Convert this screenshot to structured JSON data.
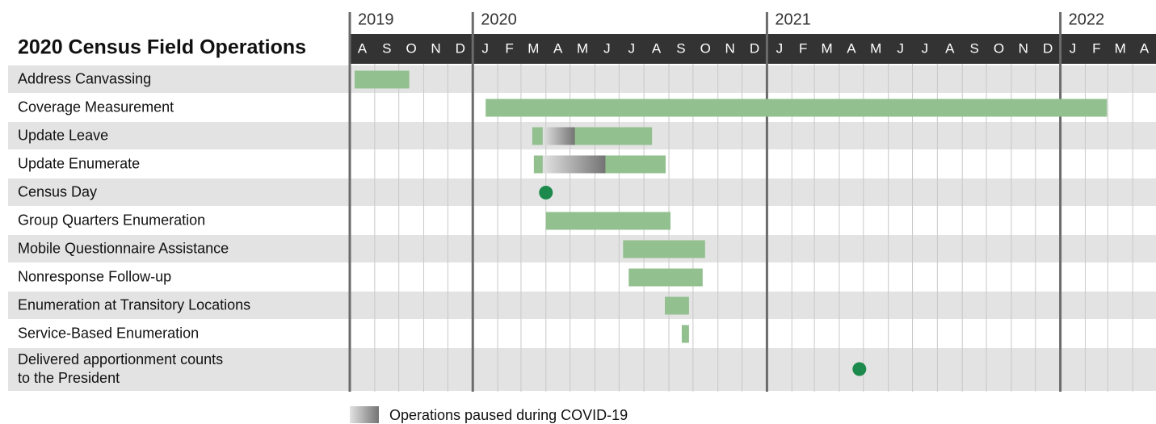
{
  "chart_data": {
    "type": "gantt",
    "title": "2020 Census Field Operations",
    "xlim": [
      "2019-08-01",
      "2022-04-30"
    ],
    "years": [
      {
        "value": "2019-08-01",
        "label": "2019"
      },
      {
        "value": "2020-01-01",
        "label": "2020"
      },
      {
        "value": "2021-01-01",
        "label": "2021"
      },
      {
        "value": "2022-01-01",
        "label": "2022"
      }
    ],
    "xticks": [
      {
        "value": "2019-08-01",
        "label": "A"
      },
      {
        "value": "2019-09-01",
        "label": "S"
      },
      {
        "value": "2019-10-01",
        "label": "O"
      },
      {
        "value": "2019-11-01",
        "label": "N"
      },
      {
        "value": "2019-12-01",
        "label": "D"
      },
      {
        "value": "2020-01-01",
        "label": "J"
      },
      {
        "value": "2020-02-01",
        "label": "F"
      },
      {
        "value": "2020-03-01",
        "label": "M"
      },
      {
        "value": "2020-04-01",
        "label": "A"
      },
      {
        "value": "2020-05-01",
        "label": "M"
      },
      {
        "value": "2020-06-01",
        "label": "J"
      },
      {
        "value": "2020-07-01",
        "label": "J"
      },
      {
        "value": "2020-08-01",
        "label": "A"
      },
      {
        "value": "2020-09-01",
        "label": "S"
      },
      {
        "value": "2020-10-01",
        "label": "O"
      },
      {
        "value": "2020-11-01",
        "label": "N"
      },
      {
        "value": "2020-12-01",
        "label": "D"
      },
      {
        "value": "2021-01-01",
        "label": "J"
      },
      {
        "value": "2021-02-01",
        "label": "F"
      },
      {
        "value": "2021-03-01",
        "label": "M"
      },
      {
        "value": "2021-04-01",
        "label": "A"
      },
      {
        "value": "2021-05-01",
        "label": "M"
      },
      {
        "value": "2021-06-01",
        "label": "J"
      },
      {
        "value": "2021-07-01",
        "label": "J"
      },
      {
        "value": "2021-08-01",
        "label": "A"
      },
      {
        "value": "2021-09-01",
        "label": "S"
      },
      {
        "value": "2021-10-01",
        "label": "O"
      },
      {
        "value": "2021-11-01",
        "label": "N"
      },
      {
        "value": "2021-12-01",
        "label": "D"
      },
      {
        "value": "2022-01-01",
        "label": "J"
      },
      {
        "value": "2022-02-01",
        "label": "F"
      },
      {
        "value": "2022-03-01",
        "label": "M"
      },
      {
        "value": "2022-04-01",
        "label": "A"
      }
    ],
    "color": "#93c08f",
    "milestone_color": "#1b8a4c",
    "tasks": [
      {
        "name": "Address Canvassing",
        "start": "2019-08-07",
        "end": "2019-10-14"
      },
      {
        "name": "Coverage Measurement",
        "start": "2020-01-17",
        "end": "2022-02-28"
      },
      {
        "name": "Update Leave",
        "start": "2020-03-15",
        "end": "2020-08-11",
        "pause": [
          "2020-03-28",
          "2020-05-07"
        ]
      },
      {
        "name": "Update Enumerate",
        "start": "2020-03-17",
        "end": "2020-08-28",
        "pause": [
          "2020-03-28",
          "2020-06-14"
        ]
      },
      {
        "name": "Census Day",
        "date": "2020-04-01"
      },
      {
        "name": "Group Quarters Enumeration",
        "start": "2020-04-01",
        "end": "2020-09-03"
      },
      {
        "name": "Mobile Questionnaire Assistance",
        "start": "2020-07-06",
        "end": "2020-10-16"
      },
      {
        "name": "Nonresponse Follow-up",
        "start": "2020-07-13",
        "end": "2020-10-13"
      },
      {
        "name": "Enumeration at Transitory Locations",
        "start": "2020-08-27",
        "end": "2020-09-26"
      },
      {
        "name": "Service-Based Enumeration",
        "start": "2020-09-17",
        "end": "2020-09-26"
      },
      {
        "name": [
          "Delivered apportionment counts",
          "to the President"
        ],
        "date": "2021-04-26"
      }
    ],
    "legend": "Operations paused during COVID-19"
  }
}
